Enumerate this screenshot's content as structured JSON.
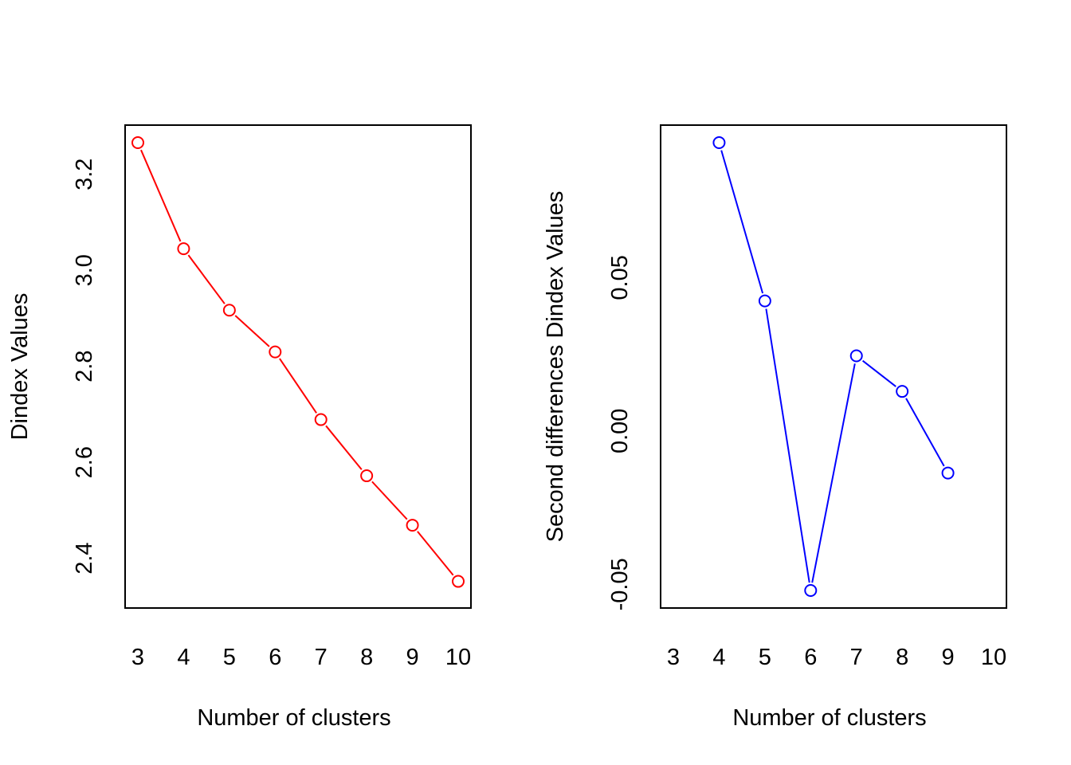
{
  "chart_data": [
    {
      "type": "line",
      "xlabel": "Number of clusters",
      "ylabel": "Dindex Values",
      "x_ticks": [
        "3",
        "4",
        "5",
        "6",
        "7",
        "8",
        "9",
        "10"
      ],
      "y_ticks": [
        "2.4",
        "2.6",
        "2.8",
        "3.0",
        "3.2"
      ],
      "xlim": [
        3,
        10
      ],
      "ylim": [
        2.333,
        3.266
      ],
      "color": "#FF0000",
      "series": [
        {
          "x": [
            3,
            4,
            5,
            6,
            7,
            8,
            9,
            10
          ],
          "y": [
            3.266,
            3.045,
            2.917,
            2.83,
            2.689,
            2.572,
            2.469,
            2.352
          ]
        }
      ]
    },
    {
      "type": "line",
      "xlabel": "Number of clusters",
      "ylabel": "Second differences Dindex Values",
      "x_ticks": [
        "3",
        "4",
        "5",
        "6",
        "7",
        "8",
        "9",
        "10"
      ],
      "y_ticks": [
        "-0.05",
        "0.00",
        "0.05"
      ],
      "xlim": [
        3,
        10
      ],
      "ylim": [
        -0.052,
        0.094
      ],
      "color": "#0000FF",
      "series": [
        {
          "x": [
            4,
            5,
            6,
            7,
            8,
            9
          ],
          "y": [
            0.094,
            0.0424,
            -0.052,
            0.0245,
            0.0129,
            -0.0137
          ]
        }
      ]
    }
  ]
}
